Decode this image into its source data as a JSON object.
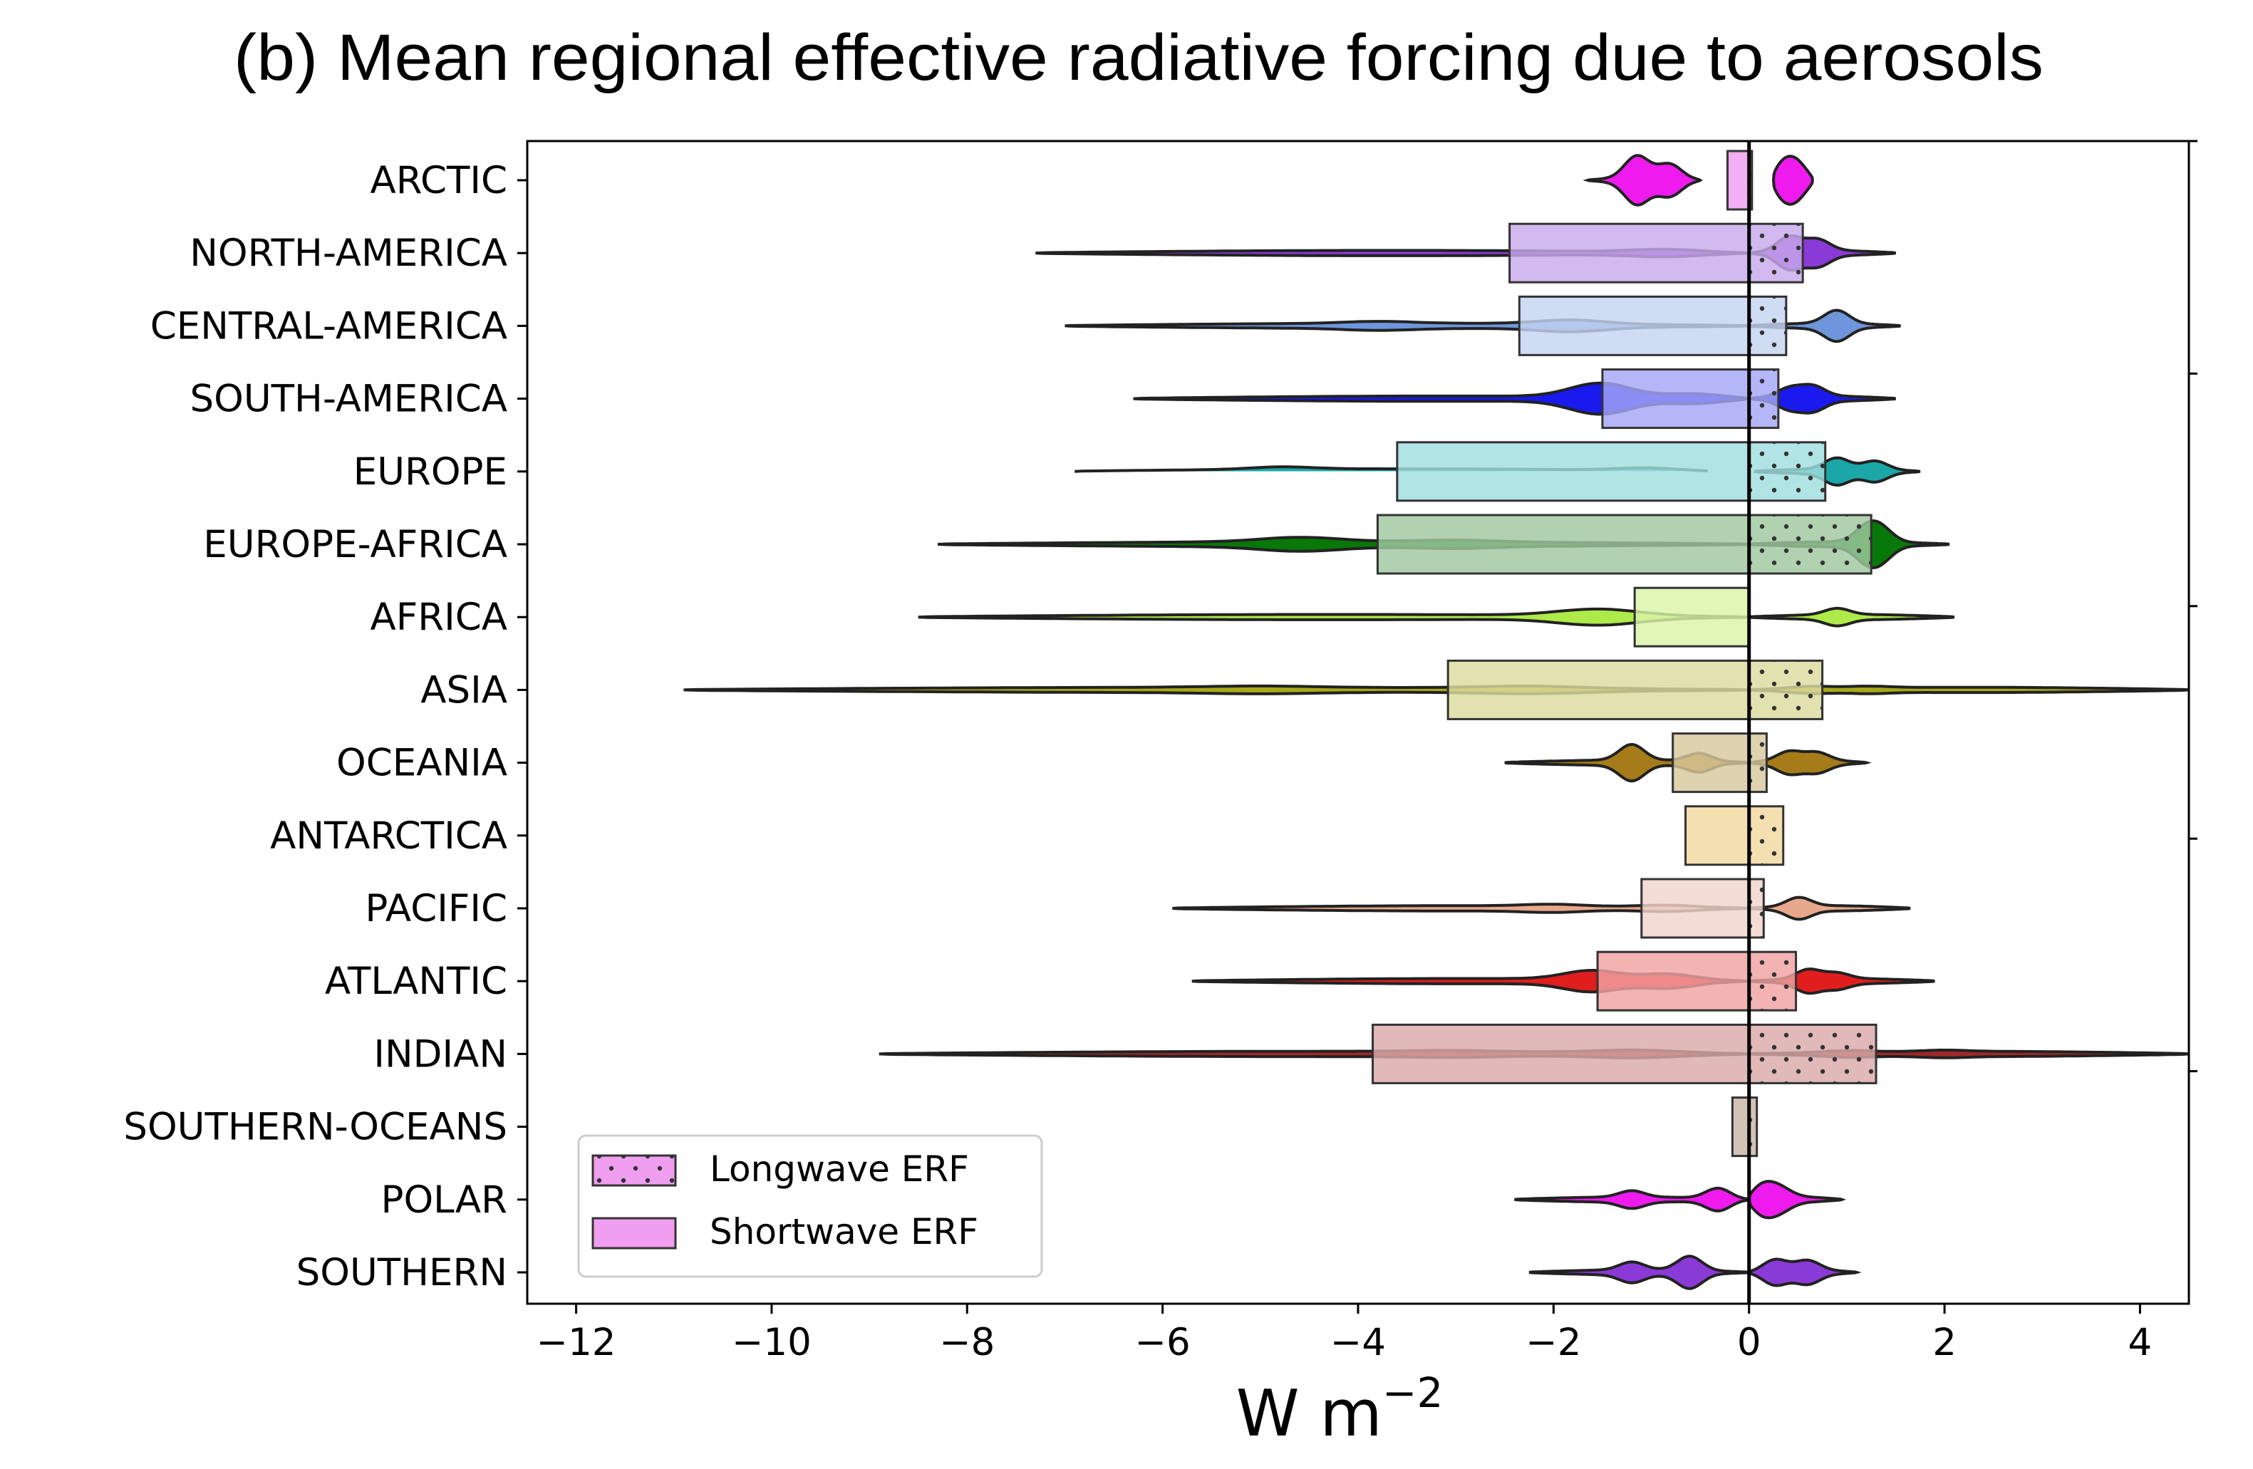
{
  "chart_data": {
    "type": "bar",
    "title": "(b)  Mean regional effective radiative forcing due to aerosols",
    "xlabel": "W m",
    "xlabel_superscript": "−2",
    "ylabel": "",
    "xlim": [
      -12.5,
      4.5
    ],
    "xticks": [
      -12,
      -10,
      -8,
      -6,
      -4,
      -2,
      0,
      2,
      4
    ],
    "xtick_labels": [
      "−12",
      "−10",
      "−8",
      "−6",
      "−4",
      "−2",
      "0",
      "2",
      "4"
    ],
    "grid": false,
    "legend_position": "lower-left",
    "legend": [
      {
        "label": "Longwave ERF",
        "color": "#f09ef0",
        "hatch": "dots"
      },
      {
        "label": "Shortwave ERF",
        "color": "#f09ef0",
        "hatch": "none"
      }
    ],
    "categories": [
      "ARCTIC",
      "NORTH-AMERICA",
      "CENTRAL-AMERICA",
      "SOUTH-AMERICA",
      "EUROPE",
      "EUROPE-AFRICA",
      "AFRICA",
      "ASIA",
      "OCEANIA",
      "ANTARCTICA",
      "PACIFIC",
      "ATLANTIC",
      "INDIAN",
      "SOUTHERN-OCEANS",
      "POLAR",
      "SOUTHERN"
    ],
    "series": [
      {
        "name": "Shortwave ERF",
        "values": [
          -0.22,
          -2.45,
          -2.35,
          -1.5,
          -3.6,
          -3.8,
          -1.17,
          -3.08,
          -0.78,
          -0.65,
          -1.1,
          -1.55,
          -3.85,
          -0.17,
          0,
          0
        ]
      },
      {
        "name": "Longwave ERF",
        "values": [
          0.03,
          0.55,
          0.38,
          0.3,
          0.78,
          1.25,
          0,
          0.75,
          0.18,
          0.35,
          0.15,
          0.48,
          1.3,
          0.08,
          0,
          0
        ]
      }
    ],
    "bar_colors": [
      "#f09ef0",
      "#c8aaec",
      "#c4d4f2",
      "#a5a6f5",
      "#a0dede",
      "#a0c8a0",
      "#daf5a8",
      "#dcdca0",
      "#d8c89c",
      "#f2d8a0",
      "#f0d4cc",
      "#f0a2a2",
      "#dcaaaa",
      "#c8b4a8",
      "#f09ef0",
      "#c8aaec"
    ],
    "violin_colors": [
      "#ee1aee",
      "#8a3ad6",
      "#6f96dc",
      "#1a1aee",
      "#1ba7a7",
      "#087808",
      "#aeeb4a",
      "#a8a81a",
      "#a67c1a",
      "#e6b84a",
      "#e8a88c",
      "#e01e1e",
      "#a02828",
      "#8c6040",
      "#ee1aee",
      "#8a3ad6"
    ],
    "violins": [
      {
        "left": [
          -1.65,
          -0.5
        ],
        "left_peaks": [
          [
            -1.15,
            0.7
          ],
          [
            -0.8,
            0.5
          ]
        ],
        "right": [
          0.25,
          0.65
        ],
        "right_peaks": [
          [
            0.3,
            0.5
          ],
          [
            0.5,
            0.45
          ]
        ]
      },
      {
        "left": [
          -7.3,
          0
        ],
        "left_peaks": [
          [
            -0.8,
            0.12
          ]
        ],
        "right": [
          0,
          1.5
        ],
        "right_peaks": [
          [
            0.4,
            0.5
          ],
          [
            0.7,
            0.35
          ]
        ]
      },
      {
        "left": [
          -7.0,
          0
        ],
        "left_peaks": [
          [
            -1.8,
            0.14
          ],
          [
            -3.8,
            0.06
          ]
        ],
        "right": [
          0,
          1.55
        ],
        "right_peaks": [
          [
            0.9,
            0.42
          ]
        ]
      },
      {
        "left": [
          -6.3,
          0
        ],
        "left_peaks": [
          [
            -1.5,
            0.5
          ],
          [
            -0.5,
            0.2
          ]
        ],
        "right": [
          0,
          1.5
        ],
        "right_peaks": [
          [
            0.4,
            0.3
          ],
          [
            0.65,
            0.32
          ]
        ]
      },
      {
        "left": [
          -6.9,
          -0.35
        ],
        "left_peaks": [
          [
            -4.8,
            0.08
          ],
          [
            -1.0,
            0.12
          ]
        ],
        "right": [
          0.05,
          1.75
        ],
        "right_peaks": [
          [
            0.9,
            0.35
          ],
          [
            1.3,
            0.3
          ]
        ]
      },
      {
        "left": [
          -8.3,
          0
        ],
        "left_peaks": [
          [
            -4.6,
            0.14
          ],
          [
            -3.0,
            0.06
          ]
        ],
        "right": [
          0,
          2.05
        ],
        "right_peaks": [
          [
            1.2,
            0.4
          ],
          [
            1.35,
            0.42
          ]
        ]
      },
      {
        "left": [
          -8.5,
          0
        ],
        "left_peaks": [
          [
            -1.5,
            0.26
          ]
        ],
        "right": [
          0,
          2.1
        ],
        "right_peaks": [
          [
            0.9,
            0.2
          ]
        ]
      },
      {
        "left": [
          -10.9,
          0
        ],
        "left_peaks": [
          [
            -2.2,
            0.08
          ],
          [
            -5.0,
            0.04
          ]
        ],
        "right": [
          0,
          4.5
        ],
        "right_peaks": [
          [
            0.6,
            0.1
          ],
          [
            1.2,
            0.06
          ]
        ]
      },
      {
        "left": [
          -2.5,
          0
        ],
        "left_peaks": [
          [
            -1.2,
            0.5
          ],
          [
            -0.5,
            0.3
          ]
        ],
        "right": [
          0,
          1.2
        ],
        "right_peaks": [
          [
            0.4,
            0.3
          ],
          [
            0.7,
            0.25
          ]
        ]
      },
      {
        "left": [
          0,
          0
        ],
        "left_peaks": [],
        "right": [
          0,
          0
        ],
        "right_peaks": []
      },
      {
        "left": [
          -5.9,
          0
        ],
        "left_peaks": [
          [
            -2.0,
            0.06
          ],
          [
            -0.8,
            0.08
          ]
        ],
        "right": [
          0,
          1.65
        ],
        "right_peaks": [
          [
            0.5,
            0.3
          ]
        ]
      },
      {
        "left": [
          -5.7,
          0
        ],
        "left_peaks": [
          [
            -1.6,
            0.3
          ],
          [
            -0.8,
            0.25
          ]
        ],
        "right": [
          0,
          1.9
        ],
        "right_peaks": [
          [
            0.6,
            0.32
          ],
          [
            0.9,
            0.18
          ]
        ]
      },
      {
        "left": [
          -8.9,
          0
        ],
        "left_peaks": [
          [
            -1.1,
            0.12
          ],
          [
            -3.0,
            0.04
          ]
        ],
        "right": [
          0,
          4.5
        ],
        "right_peaks": [
          [
            1.0,
            0.06
          ],
          [
            2.0,
            0.04
          ]
        ]
      },
      {
        "left": [
          0,
          0
        ],
        "left_peaks": [],
        "right": [
          0,
          0
        ],
        "right_peaks": []
      },
      {
        "left": [
          -2.4,
          0
        ],
        "left_peaks": [
          [
            -1.2,
            0.2
          ],
          [
            -0.3,
            0.45
          ]
        ],
        "right": [
          0,
          0.95
        ],
        "right_peaks": [
          [
            0.1,
            0.55
          ],
          [
            0.3,
            0.3
          ]
        ]
      },
      {
        "left": [
          -2.25,
          0
        ],
        "left_peaks": [
          [
            -1.2,
            0.25
          ],
          [
            -0.6,
            0.5
          ]
        ],
        "right": [
          0,
          1.1
        ],
        "right_peaks": [
          [
            0.25,
            0.4
          ],
          [
            0.6,
            0.3
          ]
        ]
      }
    ]
  }
}
